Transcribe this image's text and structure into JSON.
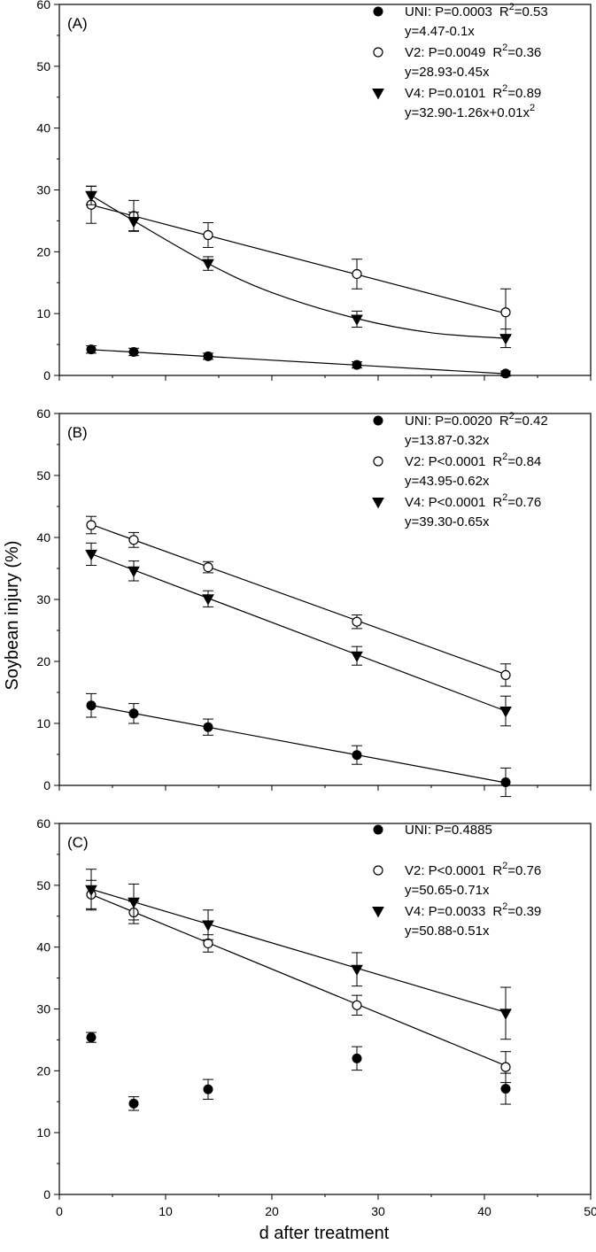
{
  "chart_data": {
    "ylabel": "Soybean injury (%)",
    "xlabel": "d after treatment",
    "x_ticks": [
      0,
      10,
      20,
      30,
      40,
      50
    ],
    "y_ticks": [
      0,
      10,
      20,
      30,
      40,
      50,
      60
    ],
    "panels": [
      {
        "type": "scatter",
        "panel_label": "(A)",
        "xlim": [
          0,
          50
        ],
        "ylim": [
          0,
          60
        ],
        "x": [
          3,
          7,
          14,
          28,
          42
        ],
        "series": [
          {
            "name": "UNI",
            "marker": "filled-circle",
            "values": [
              4.2,
              3.8,
              3.1,
              1.7,
              0.3
            ],
            "errors": [
              0.6,
              0.6,
              0.5,
              0.5,
              0.4
            ],
            "fit": {
              "type": "linear",
              "coef": [
                4.47,
                -0.1
              ]
            },
            "legend": {
              "line1": "UNI: P=0.0003",
              "r2_value": "=0.53",
              "line2": "y=4.47-0.1x"
            }
          },
          {
            "name": "V2",
            "marker": "open-circle",
            "values": [
              27.6,
              25.8,
              22.7,
              16.4,
              10.2
            ],
            "errors": [
              3.0,
              2.5,
              2.0,
              2.4,
              3.8
            ],
            "fit": {
              "type": "linear",
              "coef": [
                28.93,
                -0.45
              ]
            },
            "legend": {
              "line1": "V2: P=0.0049",
              "r2_value": "=0.36",
              "line2": "y=28.93-0.45x"
            }
          },
          {
            "name": "V4",
            "marker": "triangle-down",
            "values": [
              29.1,
              24.9,
              18.1,
              9.1,
              6.0
            ],
            "errors": [
              1.5,
              1.5,
              1.1,
              1.3,
              1.5
            ],
            "fit": {
              "type": "curve",
              "points": [
                [
                  3,
                  29.1
                ],
                [
                  7,
                  25.0
                ],
                [
                  14,
                  18.1
                ],
                [
                  20,
                  13.4
                ],
                [
                  28,
                  9.2
                ],
                [
                  35,
                  6.9
                ],
                [
                  42,
                  6.0
                ]
              ]
            },
            "legend": {
              "line1": "V4: P=0.0101",
              "r2_value": "=0.89",
              "line2": "y=32.90-1.26x+0.01x"
            }
          }
        ]
      },
      {
        "type": "scatter",
        "panel_label": "(B)",
        "xlim": [
          0,
          50
        ],
        "ylim": [
          0,
          60
        ],
        "x": [
          3,
          7,
          14,
          28,
          42
        ],
        "series": [
          {
            "name": "UNI",
            "marker": "filled-circle",
            "values": [
              12.9,
              11.6,
              9.4,
              4.9,
              0.5
            ],
            "errors": [
              1.9,
              1.6,
              1.3,
              1.5,
              2.3
            ],
            "fit": {
              "type": "linear",
              "coef": [
                13.87,
                -0.32
              ]
            },
            "legend": {
              "line1": "UNI: P=0.0020",
              "r2_value": "=0.42",
              "line2": "y=13.87-0.32x"
            }
          },
          {
            "name": "V2",
            "marker": "open-circle",
            "values": [
              42.0,
              39.6,
              35.2,
              26.4,
              17.8
            ],
            "errors": [
              1.4,
              1.2,
              0.9,
              1.1,
              1.8
            ],
            "fit": {
              "type": "linear",
              "coef": [
                43.95,
                -0.62
              ]
            },
            "legend": {
              "line1": "V2: P<0.0001",
              "r2_value": "=0.84",
              "line2": "y=43.95-0.62x"
            }
          },
          {
            "name": "V4",
            "marker": "triangle-down",
            "values": [
              37.3,
              34.6,
              30.1,
              20.9,
              12.0
            ],
            "errors": [
              1.8,
              1.6,
              1.3,
              1.5,
              2.4
            ],
            "fit": {
              "type": "linear",
              "coef": [
                39.3,
                -0.65
              ]
            },
            "legend": {
              "line1": "V4: P<0.0001",
              "r2_value": "=0.76",
              "line2": "y=39.30-0.65x"
            }
          }
        ]
      },
      {
        "type": "scatter",
        "panel_label": "(C)",
        "xlim": [
          0,
          50
        ],
        "ylim": [
          0,
          60
        ],
        "x": [
          3,
          7,
          14,
          28,
          42
        ],
        "series": [
          {
            "name": "UNI",
            "marker": "filled-circle",
            "values": [
              25.4,
              14.7,
              17.0,
              22.0,
              17.1
            ],
            "errors": [
              0.8,
              1.1,
              1.6,
              1.9,
              2.5
            ],
            "fit": null,
            "legend": {
              "line1": "UNI: P=0.4885",
              "r2_value": "",
              "line2": ""
            }
          },
          {
            "name": "V2",
            "marker": "open-circle",
            "values": [
              48.5,
              45.6,
              40.6,
              30.6,
              20.6
            ],
            "errors": [
              2.3,
              1.8,
              1.4,
              1.6,
              2.5
            ],
            "fit": {
              "type": "linear",
              "coef": [
                50.65,
                -0.71
              ]
            },
            "legend": {
              "line1": "V2: P<0.0001",
              "r2_value": "=0.76",
              "line2": "y=50.65-0.71x"
            }
          },
          {
            "name": "V4",
            "marker": "triangle-down",
            "values": [
              49.3,
              47.3,
              43.6,
              36.4,
              29.3
            ],
            "errors": [
              3.3,
              2.9,
              2.4,
              2.7,
              4.2
            ],
            "fit": {
              "type": "linear",
              "coef": [
                50.88,
                -0.51
              ]
            },
            "legend": {
              "line1": "V4: P=0.0033",
              "r2_value": "=0.39",
              "line2": "y=50.88-0.51x"
            }
          }
        ]
      }
    ]
  }
}
